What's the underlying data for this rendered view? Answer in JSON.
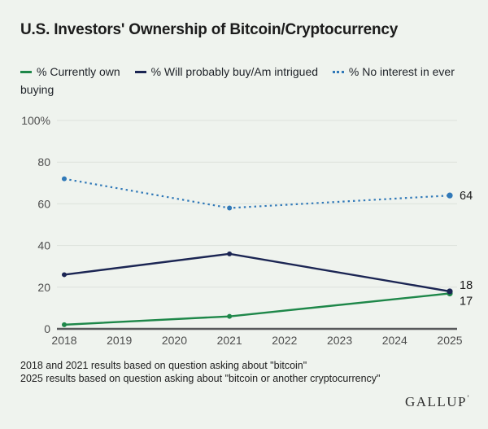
{
  "header": {
    "title": "U.S. Investors' Ownership of Bitcoin/Cryptocurrency"
  },
  "chart_data": {
    "type": "line",
    "title": "U.S. Investors' Ownership of Bitcoin/Cryptocurrency",
    "x": [
      2018,
      2021,
      2025
    ],
    "xticks": [
      2018,
      2019,
      2020,
      2021,
      2022,
      2023,
      2024,
      2025
    ],
    "xlim": [
      2018,
      2025
    ],
    "yticks": [
      0,
      20,
      40,
      60,
      80,
      100
    ],
    "ytick_labels": [
      "0",
      "20",
      "40",
      "60",
      "80",
      "100%"
    ],
    "ylim": [
      0,
      100
    ],
    "grid": true,
    "legend_position": "top",
    "colors": {
      "background": "#eff3ee",
      "gridline": "#dde2dc",
      "axis_line": "#58595b",
      "tick_label": "#4d4d4d",
      "end_label": "#1a1a1a"
    },
    "series": [
      {
        "name": "% No interest in ever buying",
        "style": "dotted",
        "color": "#3179b8",
        "values": [
          72,
          58,
          64
        ],
        "end_label": "64",
        "end_label_dy": 0
      },
      {
        "name": "% Currently own",
        "style": "solid",
        "color": "#1e8749",
        "values": [
          2,
          6,
          17
        ],
        "end_label": "17",
        "end_label_dy": 9
      },
      {
        "name": "% Will probably buy/Am intrigued",
        "style": "solid",
        "color": "#1b2553",
        "values": [
          26,
          36,
          18
        ],
        "end_label": "18",
        "end_label_dy": -8
      }
    ],
    "legend_order": [
      1,
      2,
      0
    ]
  },
  "footnotes": {
    "line1": "2018 and 2021 results based on question asking about \"bitcoin\"",
    "line2": "2025 results based on question asking about \"bitcoin or another cryptocurrency\""
  },
  "source": {
    "name": "GALLUP",
    "mark": "’"
  }
}
